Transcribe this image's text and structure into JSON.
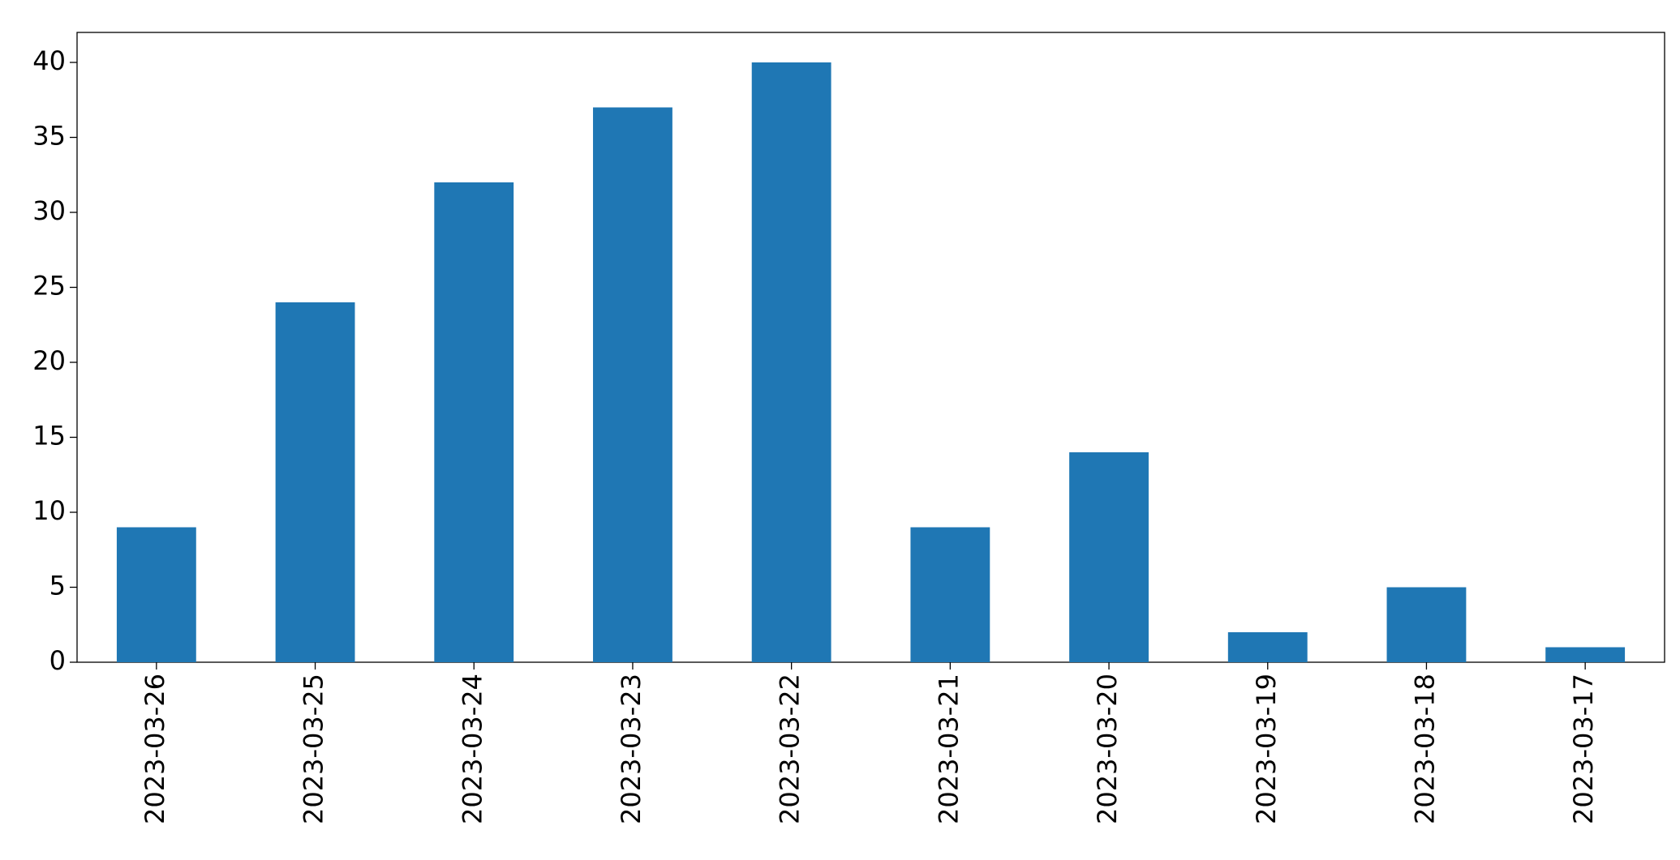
{
  "chart_data": {
    "type": "bar",
    "categories": [
      "2023-03-26",
      "2023-03-25",
      "2023-03-24",
      "2023-03-23",
      "2023-03-22",
      "2023-03-21",
      "2023-03-20",
      "2023-03-19",
      "2023-03-18",
      "2023-03-17"
    ],
    "values": [
      9,
      24,
      32,
      37,
      40,
      9,
      14,
      2,
      5,
      1
    ],
    "color": "#1f77b4",
    "ylim": [
      0,
      42
    ],
    "yticks": [
      0,
      5,
      10,
      15,
      20,
      25,
      30,
      35,
      40
    ],
    "grid": false
  }
}
